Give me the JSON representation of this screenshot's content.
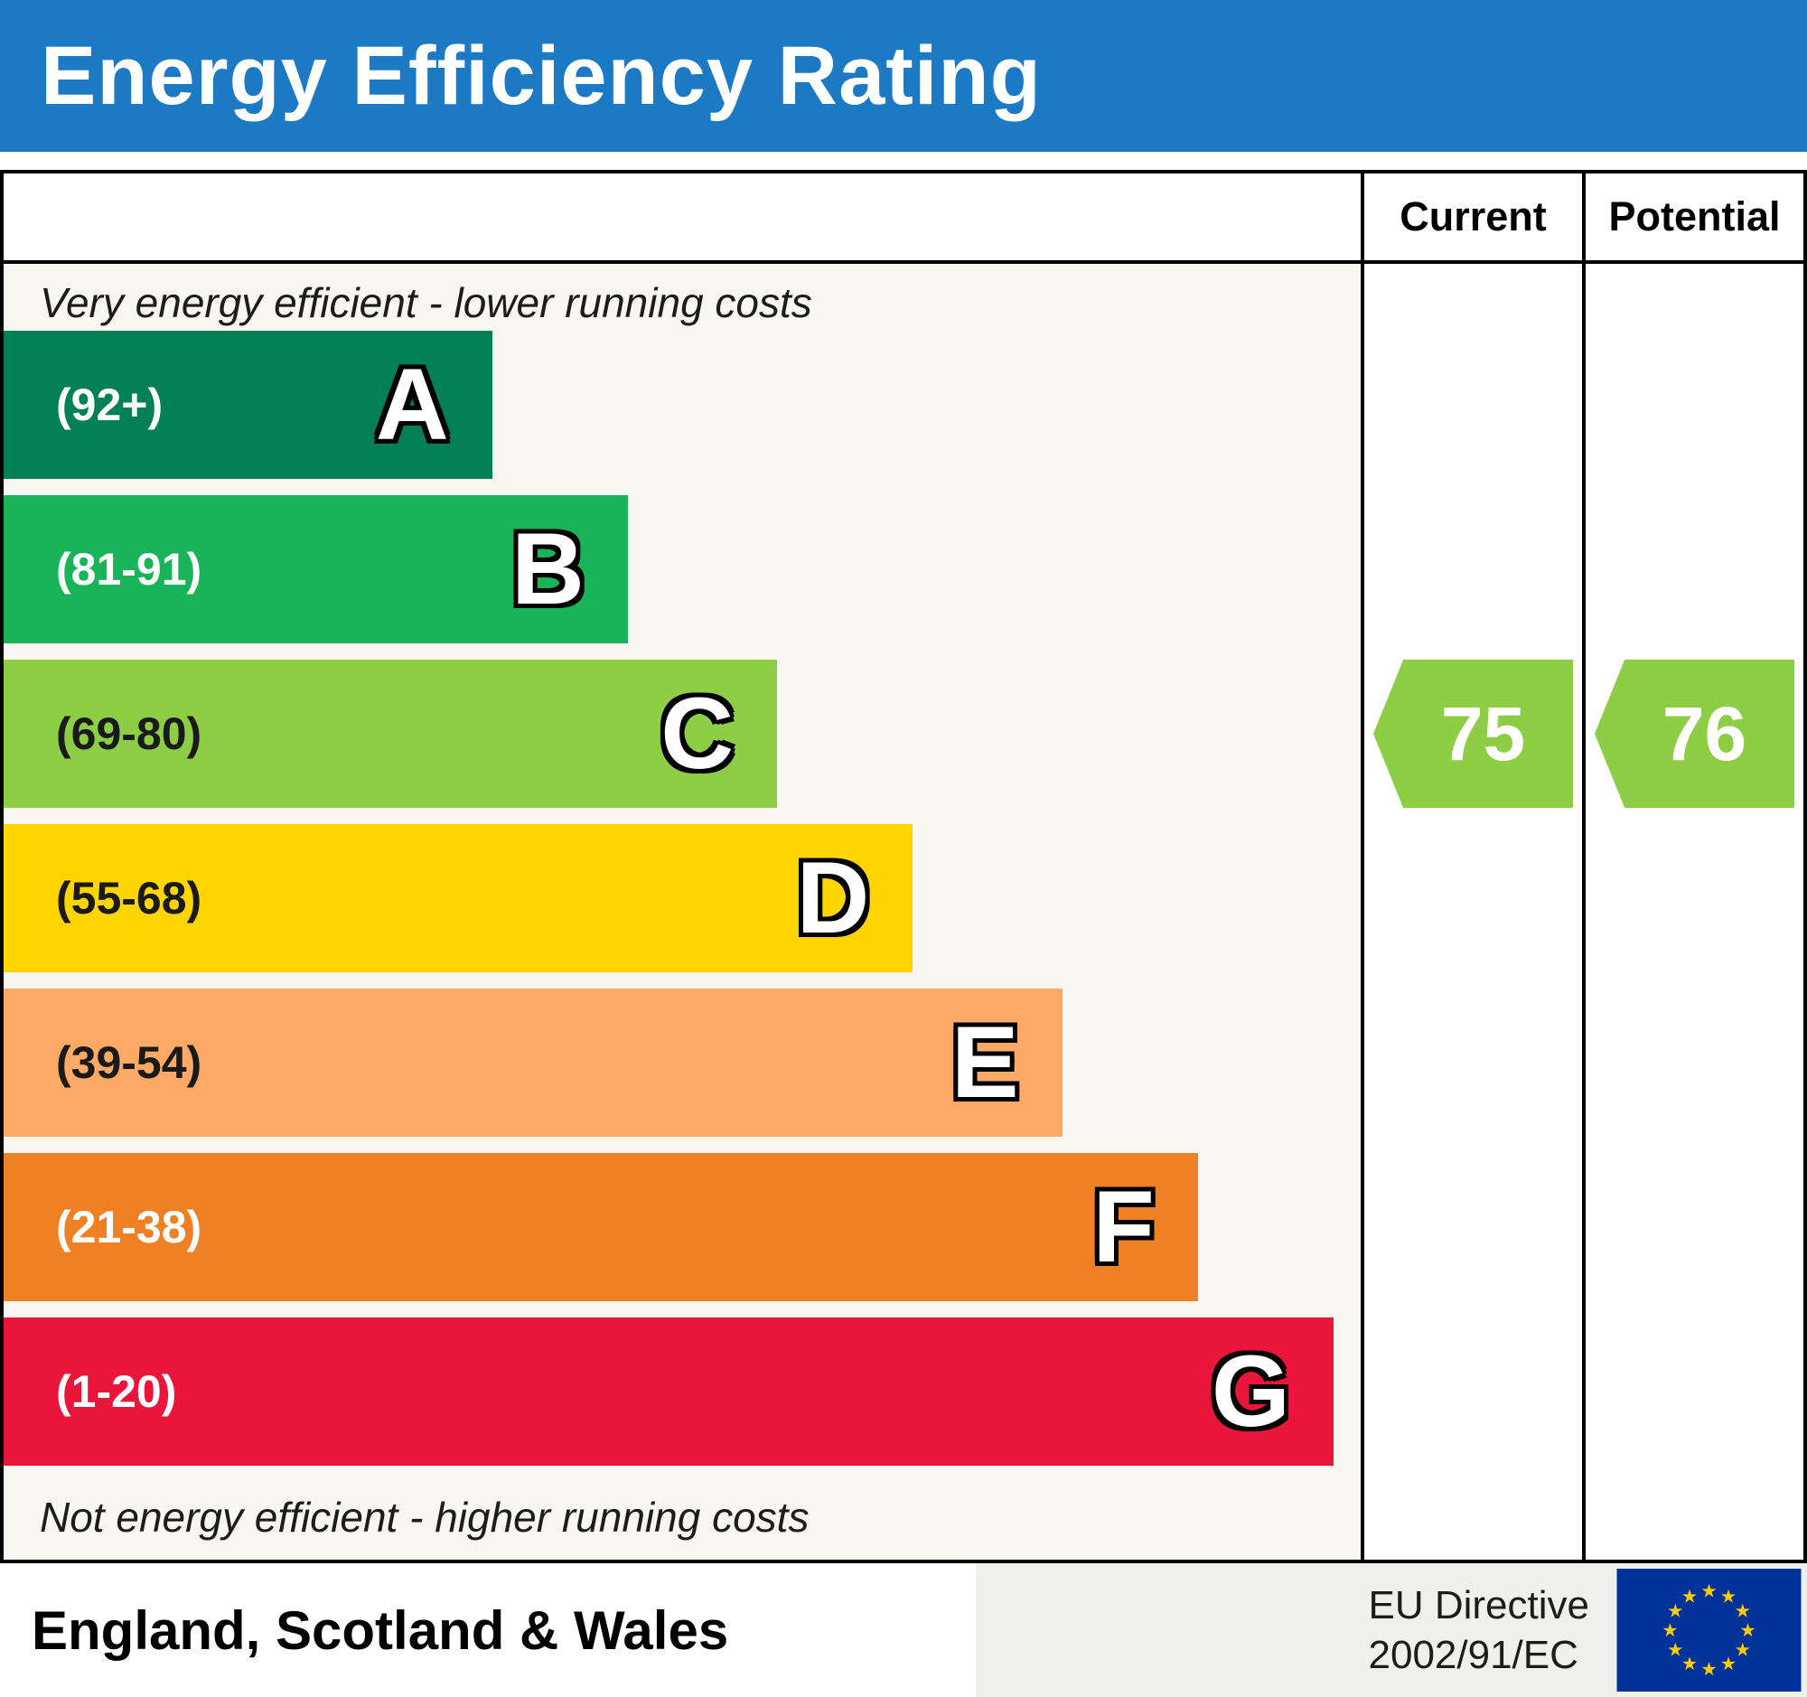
{
  "header": {
    "title": "Energy Efficiency Rating",
    "background": "#1b7ac3"
  },
  "columns": {
    "current_label": "Current",
    "potential_label": "Potential"
  },
  "scale": {
    "top_note": "Very energy efficient - lower running costs",
    "bottom_note": "Not energy efficient - higher running costs"
  },
  "bands": [
    {
      "letter": "A",
      "range": "(92+)",
      "color": "#008054",
      "text_color": "#ffffff",
      "width_pct": 36
    },
    {
      "letter": "B",
      "range": "(81-91)",
      "color": "#19b459",
      "text_color": "#ffffff",
      "width_pct": 46
    },
    {
      "letter": "C",
      "range": "(69-80)",
      "color": "#8dce46",
      "text_color": "#1a1a1a",
      "width_pct": 57
    },
    {
      "letter": "D",
      "range": "(55-68)",
      "color": "#ffd500",
      "text_color": "#1a1a1a",
      "width_pct": 67
    },
    {
      "letter": "E",
      "range": "(39-54)",
      "color": "#fcaa65",
      "text_color": "#1a1a1a",
      "width_pct": 78
    },
    {
      "letter": "F",
      "range": "(21-38)",
      "color": "#ef8023",
      "text_color": "#ffffff",
      "width_pct": 88
    },
    {
      "letter": "G",
      "range": "(1-20)",
      "color": "#e9153b",
      "text_color": "#ffffff",
      "width_pct": 98
    }
  ],
  "ratings": {
    "current": {
      "value": "75",
      "band": "C",
      "color": "#8dce46"
    },
    "potential": {
      "value": "76",
      "band": "C",
      "color": "#8dce46"
    }
  },
  "footer": {
    "region": "England, Scotland & Wales",
    "directive_line1": "EU Directive",
    "directive_line2": "2002/91/EC",
    "flag_icon": "eu-flag"
  },
  "chart_data": {
    "type": "bar",
    "title": "Energy Efficiency Rating",
    "categories": [
      "A",
      "B",
      "C",
      "D",
      "E",
      "F",
      "G"
    ],
    "band_ranges": [
      "92+",
      "81-91",
      "69-80",
      "55-68",
      "39-54",
      "21-38",
      "1-20"
    ],
    "band_colors": [
      "#008054",
      "#19b459",
      "#8dce46",
      "#ffd500",
      "#fcaa65",
      "#ef8023",
      "#e9153b"
    ],
    "bar_lengths_pct": [
      36,
      46,
      57,
      67,
      78,
      88,
      98
    ],
    "series": [
      {
        "name": "Current",
        "value": 75,
        "band": "C"
      },
      {
        "name": "Potential",
        "value": 76,
        "band": "C"
      }
    ],
    "notes": [
      "Very energy efficient - lower running costs",
      "Not energy efficient - higher running costs"
    ],
    "region": "England, Scotland & Wales",
    "legend_position": "right-columns",
    "grid": false
  }
}
